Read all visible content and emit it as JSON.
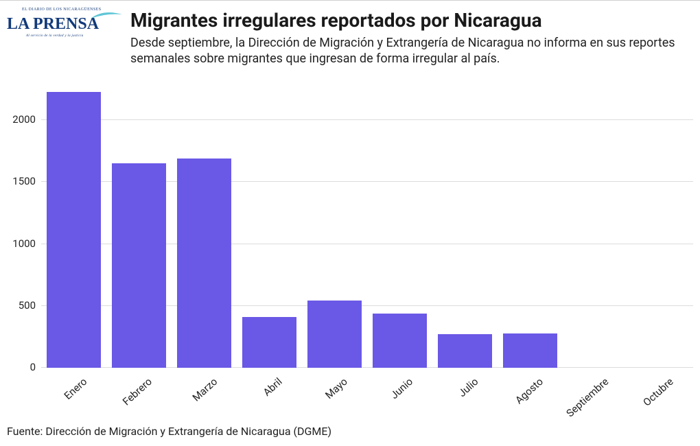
{
  "logo": {
    "brand": "LA PRENSA",
    "tag_top": "EL DIARIO DE LOS NICARAGÜENSES",
    "tag_bottom": "Al servicio de la verdad y la justicia",
    "text_color": "#123a7a",
    "swoosh_color": "#5fc6d6"
  },
  "header": {
    "title": "Migrantes irregulares reportados por Nicaragua",
    "subtitle": "Desde septiembre, la Dirección de Migración y Extrangería de Nicaragua no informa en sus reportes semanales sobre migrantes que ingresan de forma irregular al país.",
    "title_fontsize": 28,
    "subtitle_fontsize": 18,
    "title_color": "#1a1a1a"
  },
  "chart": {
    "type": "bar",
    "categories": [
      "Enero",
      "Febrero",
      "Marzo",
      "Abril",
      "Mayo",
      "Junio",
      "Julio",
      "Agosto",
      "Septiembre",
      "Octubre"
    ],
    "values": [
      2230,
      1650,
      1690,
      410,
      545,
      440,
      270,
      275,
      0,
      0
    ],
    "bar_color": "#6a58e6",
    "bar_width_ratio": 0.84,
    "ylim": [
      0,
      2300
    ],
    "yticks": [
      0,
      500,
      1000,
      1500,
      2000
    ],
    "grid_color": "#dcdcdc",
    "background_color": "#ffffff",
    "axis_label_fontsize": 15,
    "axis_label_color": "#222222",
    "xlabel_rotation_deg": -42
  },
  "footnote": "Fuente: Dirección de Migración y Extrangería de Nicaragua (DGME)"
}
